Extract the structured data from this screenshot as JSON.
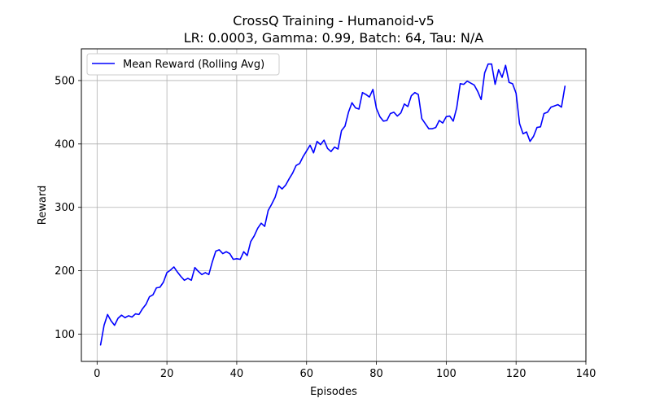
{
  "chart_data": {
    "type": "line",
    "title": "CrossQ Training - Humanoid-v5",
    "subtitle": "LR: 0.0003, Gamma: 0.99, Batch: 64, Tau: N/A",
    "xlabel": "Episodes",
    "ylabel": "Reward",
    "xlim": [
      -4.5,
      140
    ],
    "ylim": [
      57,
      550
    ],
    "xticks": [
      0,
      20,
      40,
      60,
      80,
      100,
      120,
      140
    ],
    "yticks": [
      100,
      200,
      300,
      400,
      500
    ],
    "grid": true,
    "legend_position": "top-left",
    "series": [
      {
        "name": "Mean Reward (Rolling Avg)",
        "color": "#0000ff",
        "x": [
          1,
          2,
          3,
          4,
          5,
          6,
          7,
          8,
          9,
          10,
          11,
          12,
          13,
          14,
          15,
          16,
          17,
          18,
          19,
          20,
          21,
          22,
          23,
          24,
          25,
          26,
          27,
          28,
          29,
          30,
          31,
          32,
          33,
          34,
          35,
          36,
          37,
          38,
          39,
          40,
          41,
          42,
          43,
          44,
          45,
          46,
          47,
          48,
          49,
          50,
          51,
          52,
          53,
          54,
          55,
          56,
          57,
          58,
          59,
          60,
          61,
          62,
          63,
          64,
          65,
          66,
          67,
          68,
          69,
          70,
          71,
          72,
          73,
          74,
          75,
          76,
          77,
          78,
          79,
          80,
          81,
          82,
          83,
          84,
          85,
          86,
          87,
          88,
          89,
          90,
          91,
          92,
          93,
          94,
          95,
          96,
          97,
          98,
          99,
          100,
          101,
          102,
          103,
          104,
          105,
          106,
          107,
          108,
          109,
          110,
          111,
          112,
          113,
          114,
          115,
          116,
          117,
          118,
          119,
          120,
          121,
          122,
          123,
          124,
          125,
          126,
          127,
          128,
          129,
          130,
          131,
          132,
          133,
          134
        ],
        "y": [
          83,
          114,
          131,
          121,
          114,
          125,
          130,
          126,
          129,
          127,
          132,
          131,
          140,
          147,
          159,
          162,
          173,
          174,
          182,
          197,
          201,
          206,
          198,
          191,
          185,
          188,
          185,
          205,
          199,
          194,
          197,
          194,
          214,
          231,
          233,
          227,
          230,
          227,
          218,
          219,
          218,
          230,
          224,
          246,
          255,
          267,
          275,
          270,
          295,
          305,
          316,
          334,
          329,
          335,
          345,
          354,
          366,
          369,
          380,
          389,
          398,
          386,
          404,
          399,
          406,
          393,
          388,
          395,
          392,
          421,
          428,
          450,
          465,
          457,
          455,
          481,
          478,
          474,
          486,
          456,
          443,
          436,
          437,
          448,
          450,
          444,
          449,
          463,
          459,
          476,
          481,
          478,
          440,
          432,
          424,
          424,
          426,
          437,
          433,
          443,
          444,
          436,
          457,
          495,
          494,
          499,
          496,
          493,
          483,
          470,
          512,
          526,
          526,
          494,
          517,
          505,
          524,
          497,
          495,
          480,
          432,
          416,
          419,
          404,
          412,
          426,
          427,
          448,
          450,
          458,
          460,
          462,
          458,
          491
        ]
      }
    ]
  }
}
